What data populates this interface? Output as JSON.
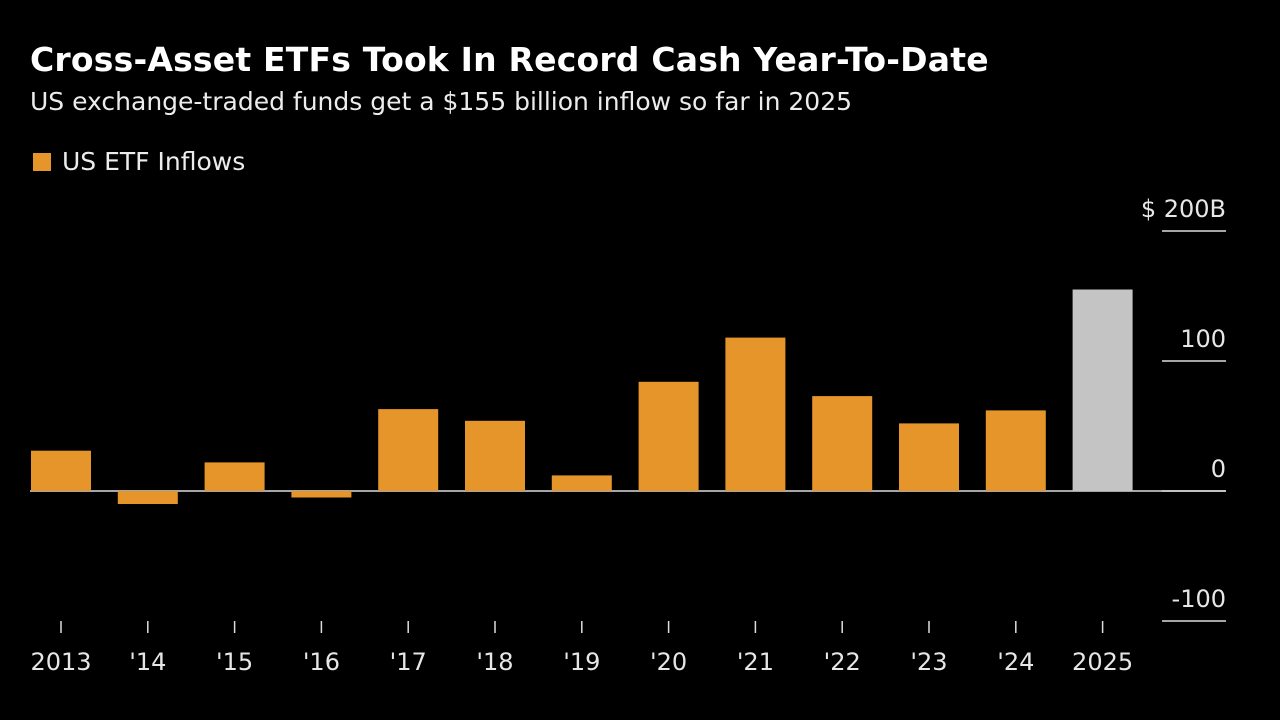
{
  "colors": {
    "background": "#000000",
    "bar": "#e6952b",
    "highlight": "#c4c4c4",
    "text": "#ffffff",
    "axis": "#dddddd"
  },
  "chart_data": {
    "type": "bar",
    "title": "Cross-Asset ETFs Took In Record Cash Year-To-Date",
    "subtitle": "US exchange-traded funds get a $155 billion inflow so far in 2025",
    "legend": "US ETF Inflows",
    "legend_position": "top-left",
    "categories": [
      "2013",
      "'14",
      "'15",
      "'16",
      "'17",
      "'18",
      "'19",
      "'20",
      "'21",
      "'22",
      "'23",
      "'24",
      "2025"
    ],
    "values": [
      31,
      -10,
      22,
      -5,
      63,
      54,
      12,
      84,
      118,
      73,
      52,
      62,
      155
    ],
    "highlight_index": 12,
    "ylim": [
      -100,
      200
    ],
    "yticks": [
      {
        "value": 200,
        "label": "$ 200B"
      },
      {
        "value": 100,
        "label": "100"
      },
      {
        "value": 0,
        "label": "0"
      },
      {
        "value": -100,
        "label": "-100"
      }
    ],
    "grid": false
  }
}
